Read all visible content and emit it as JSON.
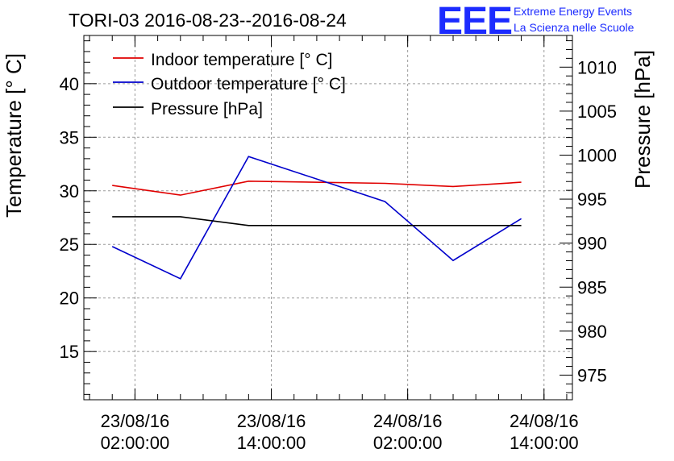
{
  "chart_data": {
    "type": "line",
    "title": "TORI-03 2016-08-23--2016-08-24",
    "xlabel": "",
    "ylabel": "Temperature [° C]",
    "y2label": "Pressure [hPa]",
    "x_ticks": [
      {
        "date": "23/08/16",
        "time": "02:00:00"
      },
      {
        "date": "23/08/16",
        "time": "14:00:00"
      },
      {
        "date": "24/08/16",
        "time": "02:00:00"
      },
      {
        "date": "24/08/16",
        "time": "14:00:00"
      }
    ],
    "x_range": [
      "2016-08-22 21:30",
      "2016-08-24 16:30"
    ],
    "ylim": [
      10.5,
      44.5
    ],
    "y2lim": [
      972.2,
      1013.6
    ],
    "y_ticks": [
      15,
      20,
      25,
      30,
      35,
      40
    ],
    "y2_ticks": [
      975,
      980,
      985,
      990,
      995,
      1000,
      1005,
      1010
    ],
    "grid": true,
    "legend_position": "top-left",
    "series": [
      {
        "name": "Indoor temperature [° C]",
        "axis": "left",
        "color": "#e00000",
        "x": [
          "2016-08-23 00:00",
          "2016-08-23 06:00",
          "2016-08-23 12:00",
          "2016-08-24 00:00",
          "2016-08-24 06:00",
          "2016-08-24 12:00"
        ],
        "values": [
          30.5,
          29.6,
          30.9,
          30.7,
          30.4,
          30.8
        ]
      },
      {
        "name": "Outdoor temperature [° C]",
        "axis": "left",
        "color": "#0000cc",
        "x": [
          "2016-08-23 00:00",
          "2016-08-23 06:00",
          "2016-08-23 12:00",
          "2016-08-24 00:00",
          "2016-08-24 06:00",
          "2016-08-24 12:00"
        ],
        "values": [
          24.8,
          21.8,
          33.2,
          29.0,
          23.5,
          27.4
        ]
      },
      {
        "name": "Pressure [hPa]",
        "axis": "right",
        "color": "#000000",
        "x": [
          "2016-08-23 00:00",
          "2016-08-23 06:00",
          "2016-08-23 12:00",
          "2016-08-24 00:00",
          "2016-08-24 06:00",
          "2016-08-24 12:00"
        ],
        "values": [
          993.0,
          993.0,
          992.0,
          992.0,
          992.0,
          992.0
        ]
      }
    ]
  },
  "logo": {
    "mark": "EEE",
    "line1": "Extreme Energy Events",
    "line2": "La Scienza nelle Scuole",
    "color": "#1c2bff"
  }
}
